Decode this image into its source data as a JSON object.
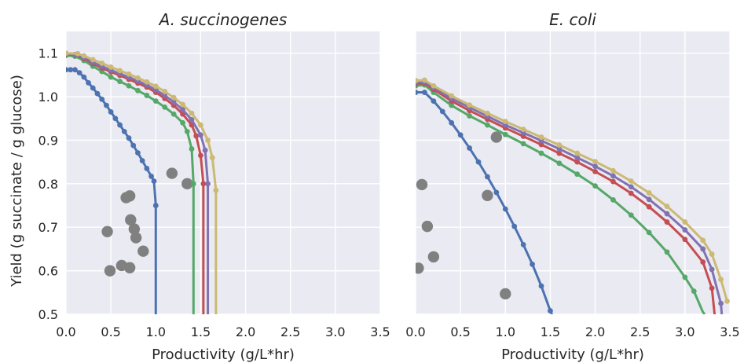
{
  "chart_data": [
    {
      "type": "line",
      "title": "A. succinogenes",
      "xlabel": "Productivity (g/L*hr)",
      "ylabel": "Yield (g succinate / g glucose)",
      "xlim": [
        0.0,
        3.5
      ],
      "ylim": [
        0.5,
        1.15
      ],
      "xticks": [
        "0.0",
        "0.5",
        "1.0",
        "1.5",
        "2.0",
        "2.5",
        "3.0",
        "3.5"
      ],
      "yticks": [
        "0.5",
        "0.6",
        "0.7",
        "0.8",
        "0.9",
        "1.0",
        "1.1"
      ],
      "grid": true,
      "series": [
        {
          "color": "#4c72b0",
          "points": [
            [
              0,
              1.062
            ],
            [
              0.05,
              1.062
            ],
            [
              0.1,
              1.062
            ],
            [
              0.15,
              1.055
            ],
            [
              0.2,
              1.045
            ],
            [
              0.25,
              1.032
            ],
            [
              0.3,
              1.02
            ],
            [
              0.35,
              1.007
            ],
            [
              0.4,
              0.994
            ],
            [
              0.45,
              0.98
            ],
            [
              0.5,
              0.965
            ],
            [
              0.55,
              0.95
            ],
            [
              0.6,
              0.935
            ],
            [
              0.65,
              0.92
            ],
            [
              0.7,
              0.905
            ],
            [
              0.75,
              0.888
            ],
            [
              0.8,
              0.871
            ],
            [
              0.85,
              0.853
            ],
            [
              0.9,
              0.835
            ],
            [
              0.95,
              0.817
            ],
            [
              0.98,
              0.806
            ],
            [
              1.0,
              0.75
            ],
            [
              1.0,
              0.5
            ]
          ]
        },
        {
          "color": "#55a868",
          "points": [
            [
              0,
              1.095
            ],
            [
              0.1,
              1.093
            ],
            [
              0.2,
              1.083
            ],
            [
              0.3,
              1.07
            ],
            [
              0.4,
              1.058
            ],
            [
              0.5,
              1.045
            ],
            [
              0.6,
              1.035
            ],
            [
              0.7,
              1.025
            ],
            [
              0.8,
              1.014
            ],
            [
              0.9,
              1.003
            ],
            [
              1.0,
              0.99
            ],
            [
              1.1,
              0.976
            ],
            [
              1.2,
              0.96
            ],
            [
              1.3,
              0.94
            ],
            [
              1.35,
              0.92
            ],
            [
              1.4,
              0.88
            ],
            [
              1.42,
              0.8
            ],
            [
              1.42,
              0.5
            ]
          ]
        },
        {
          "color": "#c44e52",
          "points": [
            [
              0,
              1.098
            ],
            [
              0.1,
              1.096
            ],
            [
              0.2,
              1.088
            ],
            [
              0.3,
              1.076
            ],
            [
              0.4,
              1.066
            ],
            [
              0.5,
              1.057
            ],
            [
              0.6,
              1.049
            ],
            [
              0.7,
              1.04
            ],
            [
              0.8,
              1.031
            ],
            [
              0.9,
              1.022
            ],
            [
              1.0,
              1.01
            ],
            [
              1.1,
              0.996
            ],
            [
              1.2,
              0.98
            ],
            [
              1.3,
              0.96
            ],
            [
              1.4,
              0.935
            ],
            [
              1.45,
              0.91
            ],
            [
              1.5,
              0.865
            ],
            [
              1.53,
              0.8
            ],
            [
              1.53,
              0.5
            ]
          ]
        },
        {
          "color": "#8172b2",
          "points": [
            [
              0,
              1.099
            ],
            [
              0.1,
              1.097
            ],
            [
              0.2,
              1.09
            ],
            [
              0.3,
              1.079
            ],
            [
              0.4,
              1.07
            ],
            [
              0.5,
              1.061
            ],
            [
              0.6,
              1.053
            ],
            [
              0.7,
              1.045
            ],
            [
              0.8,
              1.036
            ],
            [
              0.9,
              1.027
            ],
            [
              1.0,
              1.016
            ],
            [
              1.1,
              1.003
            ],
            [
              1.2,
              0.988
            ],
            [
              1.3,
              0.97
            ],
            [
              1.4,
              0.947
            ],
            [
              1.5,
              0.912
            ],
            [
              1.55,
              0.877
            ],
            [
              1.58,
              0.8
            ],
            [
              1.58,
              0.5
            ]
          ]
        },
        {
          "color": "#ccb974",
          "points": [
            [
              0,
              1.1
            ],
            [
              0.13,
              1.099
            ],
            [
              0.2,
              1.094
            ],
            [
              0.3,
              1.085
            ],
            [
              0.4,
              1.077
            ],
            [
              0.5,
              1.068
            ],
            [
              0.6,
              1.06
            ],
            [
              0.7,
              1.052
            ],
            [
              0.8,
              1.043
            ],
            [
              0.9,
              1.034
            ],
            [
              1.0,
              1.024
            ],
            [
              1.1,
              1.012
            ],
            [
              1.2,
              0.998
            ],
            [
              1.3,
              0.982
            ],
            [
              1.4,
              0.962
            ],
            [
              1.5,
              0.935
            ],
            [
              1.58,
              0.9
            ],
            [
              1.63,
              0.86
            ],
            [
              1.67,
              0.785
            ],
            [
              1.67,
              0.5
            ]
          ]
        }
      ],
      "scatter": {
        "color": "#808080",
        "points": [
          [
            0.46,
            0.69
          ],
          [
            0.49,
            0.6
          ],
          [
            0.62,
            0.612
          ],
          [
            0.67,
            0.768
          ],
          [
            0.71,
            0.772
          ],
          [
            0.71,
            0.607
          ],
          [
            0.72,
            0.717
          ],
          [
            0.76,
            0.696
          ],
          [
            0.78,
            0.676
          ],
          [
            0.86,
            0.645
          ],
          [
            1.18,
            0.824
          ],
          [
            1.35,
            0.8
          ]
        ]
      }
    },
    {
      "type": "line",
      "title": "E. coli",
      "xlabel": "Productivity (g/L*hr)",
      "xlim": [
        0.0,
        3.5
      ],
      "ylim": [
        0.5,
        1.15
      ],
      "xticks": [
        "0.0",
        "0.5",
        "1.0",
        "1.5",
        "2.0",
        "2.5",
        "3.0",
        "3.5"
      ],
      "grid": true,
      "series": [
        {
          "color": "#4c72b0",
          "points": [
            [
              0,
              1.01
            ],
            [
              0.1,
              1.01
            ],
            [
              0.2,
              0.99
            ],
            [
              0.3,
              0.966
            ],
            [
              0.4,
              0.94
            ],
            [
              0.5,
              0.912
            ],
            [
              0.6,
              0.882
            ],
            [
              0.7,
              0.85
            ],
            [
              0.8,
              0.816
            ],
            [
              0.9,
              0.78
            ],
            [
              1.0,
              0.742
            ],
            [
              1.1,
              0.702
            ],
            [
              1.2,
              0.66
            ],
            [
              1.3,
              0.615
            ],
            [
              1.4,
              0.565
            ],
            [
              1.5,
              0.508
            ],
            [
              1.52,
              0.5
            ]
          ]
        },
        {
          "color": "#55a868",
          "points": [
            [
              0,
              1.025
            ],
            [
              0.1,
              1.027
            ],
            [
              0.2,
              1.01
            ],
            [
              0.4,
              0.98
            ],
            [
              0.6,
              0.956
            ],
            [
              0.8,
              0.935
            ],
            [
              1.0,
              0.913
            ],
            [
              1.2,
              0.892
            ],
            [
              1.4,
              0.87
            ],
            [
              1.6,
              0.847
            ],
            [
              1.8,
              0.822
            ],
            [
              2.0,
              0.795
            ],
            [
              2.2,
              0.763
            ],
            [
              2.4,
              0.728
            ],
            [
              2.6,
              0.688
            ],
            [
              2.8,
              0.643
            ],
            [
              3.0,
              0.585
            ],
            [
              3.1,
              0.553
            ],
            [
              3.2,
              0.505
            ],
            [
              3.22,
              0.5
            ]
          ]
        },
        {
          "color": "#c44e52",
          "points": [
            [
              0,
              1.03
            ],
            [
              0.1,
              1.031
            ],
            [
              0.2,
              1.017
            ],
            [
              0.4,
              0.99
            ],
            [
              0.6,
              0.968
            ],
            [
              0.8,
              0.948
            ],
            [
              1.0,
              0.928
            ],
            [
              1.2,
              0.909
            ],
            [
              1.4,
              0.89
            ],
            [
              1.6,
              0.87
            ],
            [
              1.8,
              0.85
            ],
            [
              2.0,
              0.828
            ],
            [
              2.2,
              0.805
            ],
            [
              2.4,
              0.778
            ],
            [
              2.6,
              0.747
            ],
            [
              2.8,
              0.712
            ],
            [
              3.0,
              0.672
            ],
            [
              3.2,
              0.62
            ],
            [
              3.3,
              0.56
            ],
            [
              3.33,
              0.5
            ]
          ]
        },
        {
          "color": "#8172b2",
          "points": [
            [
              0,
              1.033
            ],
            [
              0.1,
              1.034
            ],
            [
              0.2,
              1.021
            ],
            [
              0.4,
              0.996
            ],
            [
              0.6,
              0.975
            ],
            [
              0.8,
              0.955
            ],
            [
              1.0,
              0.935
            ],
            [
              1.2,
              0.917
            ],
            [
              1.4,
              0.899
            ],
            [
              1.6,
              0.88
            ],
            [
              1.8,
              0.86
            ],
            [
              2.0,
              0.84
            ],
            [
              2.2,
              0.818
            ],
            [
              2.4,
              0.793
            ],
            [
              2.6,
              0.764
            ],
            [
              2.8,
              0.731
            ],
            [
              3.0,
              0.694
            ],
            [
              3.2,
              0.65
            ],
            [
              3.3,
              0.603
            ],
            [
              3.4,
              0.525
            ],
            [
              3.41,
              0.5
            ]
          ]
        },
        {
          "color": "#ccb974",
          "points": [
            [
              0,
              1.037
            ],
            [
              0.1,
              1.038
            ],
            [
              0.2,
              1.025
            ],
            [
              0.4,
              1.002
            ],
            [
              0.6,
              0.981
            ],
            [
              0.8,
              0.962
            ],
            [
              1.0,
              0.943
            ],
            [
              1.2,
              0.925
            ],
            [
              1.4,
              0.907
            ],
            [
              1.6,
              0.889
            ],
            [
              1.8,
              0.87
            ],
            [
              2.0,
              0.851
            ],
            [
              2.2,
              0.83
            ],
            [
              2.4,
              0.806
            ],
            [
              2.6,
              0.779
            ],
            [
              2.8,
              0.748
            ],
            [
              3.0,
              0.712
            ],
            [
              3.2,
              0.67
            ],
            [
              3.3,
              0.638
            ],
            [
              3.4,
              0.58
            ],
            [
              3.47,
              0.53
            ]
          ]
        }
      ],
      "scatter": {
        "color": "#808080",
        "points": [
          [
            0.03,
            0.606
          ],
          [
            0.07,
            0.798
          ],
          [
            0.13,
            0.702
          ],
          [
            0.2,
            0.632
          ],
          [
            0.8,
            0.773
          ],
          [
            0.9,
            0.907
          ],
          [
            1.0,
            0.547
          ]
        ]
      }
    }
  ]
}
